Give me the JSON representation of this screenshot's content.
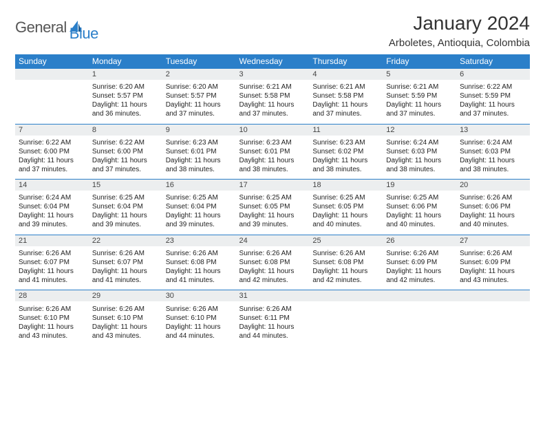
{
  "logo": {
    "text1": "General",
    "text2": "Blue"
  },
  "title": "January 2024",
  "location": "Arboletes, Antioquia, Colombia",
  "colors": {
    "header_bg": "#2b7fc9",
    "header_text": "#ffffff",
    "daynum_bg": "#eceeef",
    "border": "#2b7fc9",
    "text": "#222222",
    "title_text": "#333333"
  },
  "day_headers": [
    "Sunday",
    "Monday",
    "Tuesday",
    "Wednesday",
    "Thursday",
    "Friday",
    "Saturday"
  ],
  "weeks": [
    [
      {
        "num": "",
        "sunrise": "",
        "sunset": "",
        "daylight": ""
      },
      {
        "num": "1",
        "sunrise": "Sunrise: 6:20 AM",
        "sunset": "Sunset: 5:57 PM",
        "daylight": "Daylight: 11 hours and 36 minutes."
      },
      {
        "num": "2",
        "sunrise": "Sunrise: 6:20 AM",
        "sunset": "Sunset: 5:57 PM",
        "daylight": "Daylight: 11 hours and 37 minutes."
      },
      {
        "num": "3",
        "sunrise": "Sunrise: 6:21 AM",
        "sunset": "Sunset: 5:58 PM",
        "daylight": "Daylight: 11 hours and 37 minutes."
      },
      {
        "num": "4",
        "sunrise": "Sunrise: 6:21 AM",
        "sunset": "Sunset: 5:58 PM",
        "daylight": "Daylight: 11 hours and 37 minutes."
      },
      {
        "num": "5",
        "sunrise": "Sunrise: 6:21 AM",
        "sunset": "Sunset: 5:59 PM",
        "daylight": "Daylight: 11 hours and 37 minutes."
      },
      {
        "num": "6",
        "sunrise": "Sunrise: 6:22 AM",
        "sunset": "Sunset: 5:59 PM",
        "daylight": "Daylight: 11 hours and 37 minutes."
      }
    ],
    [
      {
        "num": "7",
        "sunrise": "Sunrise: 6:22 AM",
        "sunset": "Sunset: 6:00 PM",
        "daylight": "Daylight: 11 hours and 37 minutes."
      },
      {
        "num": "8",
        "sunrise": "Sunrise: 6:22 AM",
        "sunset": "Sunset: 6:00 PM",
        "daylight": "Daylight: 11 hours and 37 minutes."
      },
      {
        "num": "9",
        "sunrise": "Sunrise: 6:23 AM",
        "sunset": "Sunset: 6:01 PM",
        "daylight": "Daylight: 11 hours and 38 minutes."
      },
      {
        "num": "10",
        "sunrise": "Sunrise: 6:23 AM",
        "sunset": "Sunset: 6:01 PM",
        "daylight": "Daylight: 11 hours and 38 minutes."
      },
      {
        "num": "11",
        "sunrise": "Sunrise: 6:23 AM",
        "sunset": "Sunset: 6:02 PM",
        "daylight": "Daylight: 11 hours and 38 minutes."
      },
      {
        "num": "12",
        "sunrise": "Sunrise: 6:24 AM",
        "sunset": "Sunset: 6:03 PM",
        "daylight": "Daylight: 11 hours and 38 minutes."
      },
      {
        "num": "13",
        "sunrise": "Sunrise: 6:24 AM",
        "sunset": "Sunset: 6:03 PM",
        "daylight": "Daylight: 11 hours and 38 minutes."
      }
    ],
    [
      {
        "num": "14",
        "sunrise": "Sunrise: 6:24 AM",
        "sunset": "Sunset: 6:04 PM",
        "daylight": "Daylight: 11 hours and 39 minutes."
      },
      {
        "num": "15",
        "sunrise": "Sunrise: 6:25 AM",
        "sunset": "Sunset: 6:04 PM",
        "daylight": "Daylight: 11 hours and 39 minutes."
      },
      {
        "num": "16",
        "sunrise": "Sunrise: 6:25 AM",
        "sunset": "Sunset: 6:04 PM",
        "daylight": "Daylight: 11 hours and 39 minutes."
      },
      {
        "num": "17",
        "sunrise": "Sunrise: 6:25 AM",
        "sunset": "Sunset: 6:05 PM",
        "daylight": "Daylight: 11 hours and 39 minutes."
      },
      {
        "num": "18",
        "sunrise": "Sunrise: 6:25 AM",
        "sunset": "Sunset: 6:05 PM",
        "daylight": "Daylight: 11 hours and 40 minutes."
      },
      {
        "num": "19",
        "sunrise": "Sunrise: 6:25 AM",
        "sunset": "Sunset: 6:06 PM",
        "daylight": "Daylight: 11 hours and 40 minutes."
      },
      {
        "num": "20",
        "sunrise": "Sunrise: 6:26 AM",
        "sunset": "Sunset: 6:06 PM",
        "daylight": "Daylight: 11 hours and 40 minutes."
      }
    ],
    [
      {
        "num": "21",
        "sunrise": "Sunrise: 6:26 AM",
        "sunset": "Sunset: 6:07 PM",
        "daylight": "Daylight: 11 hours and 41 minutes."
      },
      {
        "num": "22",
        "sunrise": "Sunrise: 6:26 AM",
        "sunset": "Sunset: 6:07 PM",
        "daylight": "Daylight: 11 hours and 41 minutes."
      },
      {
        "num": "23",
        "sunrise": "Sunrise: 6:26 AM",
        "sunset": "Sunset: 6:08 PM",
        "daylight": "Daylight: 11 hours and 41 minutes."
      },
      {
        "num": "24",
        "sunrise": "Sunrise: 6:26 AM",
        "sunset": "Sunset: 6:08 PM",
        "daylight": "Daylight: 11 hours and 42 minutes."
      },
      {
        "num": "25",
        "sunrise": "Sunrise: 6:26 AM",
        "sunset": "Sunset: 6:08 PM",
        "daylight": "Daylight: 11 hours and 42 minutes."
      },
      {
        "num": "26",
        "sunrise": "Sunrise: 6:26 AM",
        "sunset": "Sunset: 6:09 PM",
        "daylight": "Daylight: 11 hours and 42 minutes."
      },
      {
        "num": "27",
        "sunrise": "Sunrise: 6:26 AM",
        "sunset": "Sunset: 6:09 PM",
        "daylight": "Daylight: 11 hours and 43 minutes."
      }
    ],
    [
      {
        "num": "28",
        "sunrise": "Sunrise: 6:26 AM",
        "sunset": "Sunset: 6:10 PM",
        "daylight": "Daylight: 11 hours and 43 minutes."
      },
      {
        "num": "29",
        "sunrise": "Sunrise: 6:26 AM",
        "sunset": "Sunset: 6:10 PM",
        "daylight": "Daylight: 11 hours and 43 minutes."
      },
      {
        "num": "30",
        "sunrise": "Sunrise: 6:26 AM",
        "sunset": "Sunset: 6:10 PM",
        "daylight": "Daylight: 11 hours and 44 minutes."
      },
      {
        "num": "31",
        "sunrise": "Sunrise: 6:26 AM",
        "sunset": "Sunset: 6:11 PM",
        "daylight": "Daylight: 11 hours and 44 minutes."
      },
      {
        "num": "",
        "sunrise": "",
        "sunset": "",
        "daylight": ""
      },
      {
        "num": "",
        "sunrise": "",
        "sunset": "",
        "daylight": ""
      },
      {
        "num": "",
        "sunrise": "",
        "sunset": "",
        "daylight": ""
      }
    ]
  ]
}
